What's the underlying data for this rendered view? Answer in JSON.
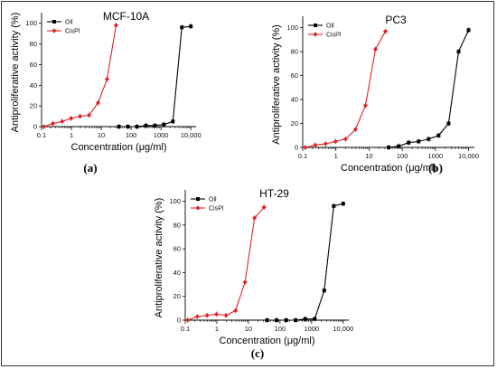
{
  "chart_data": [
    {
      "type": "line",
      "title": "MCF-10A",
      "panel_label": "(a)",
      "xlabel": "Concentration (μg/ml)",
      "ylabel": "Antiproliferative activity (%)",
      "x_scale": "log",
      "xlim": [
        0.1,
        15000
      ],
      "ylim": [
        0,
        105
      ],
      "x_ticks": [
        0.1,
        1,
        10,
        100,
        1000,
        10000
      ],
      "x_tick_labels": [
        "0.1",
        "1",
        "10",
        "100",
        "1000",
        "10,000"
      ],
      "y_ticks": [
        0,
        20,
        40,
        60,
        80,
        100
      ],
      "legend_position": "top-left",
      "series": [
        {
          "name": "Oil",
          "color": "#000000",
          "marker": "square",
          "x": [
            39,
            78,
            156,
            312,
            625,
            1250,
            2500,
            5000,
            10000
          ],
          "y": [
            0,
            0,
            0,
            1,
            1,
            2,
            5,
            96,
            97
          ]
        },
        {
          "name": "CisPl",
          "color": "#e0232a",
          "marker": "diamond",
          "x": [
            0.12,
            0.24,
            0.49,
            0.98,
            1.95,
            3.9,
            7.8,
            15.6,
            31.2
          ],
          "y": [
            0,
            3,
            5,
            8,
            10,
            11,
            23,
            46,
            98
          ]
        }
      ]
    },
    {
      "type": "line",
      "title": "PC3",
      "panel_label": "(b)",
      "xlabel": "Concentration (μg/ml)",
      "ylabel": "Antiproliferative activity (%)",
      "x_scale": "log",
      "xlim": [
        0.1,
        15000
      ],
      "ylim": [
        0,
        105
      ],
      "x_ticks": [
        0.1,
        1,
        10,
        100,
        1000,
        10000
      ],
      "x_tick_labels": [
        "0.1",
        "1",
        "10",
        "100",
        "1000",
        "10,000"
      ],
      "y_ticks": [
        0,
        20,
        40,
        60,
        80,
        100
      ],
      "legend_position": "top-left",
      "series": [
        {
          "name": "Oil",
          "color": "#000000",
          "marker": "square",
          "x": [
            39,
            78,
            156,
            312,
            625,
            1250,
            2500,
            5000,
            10000
          ],
          "y": [
            0,
            1,
            4,
            5,
            7,
            10,
            20,
            80,
            98
          ]
        },
        {
          "name": "CisPl",
          "color": "#e0232a",
          "marker": "diamond",
          "x": [
            0.12,
            0.24,
            0.49,
            0.98,
            1.95,
            3.9,
            7.8,
            15.6,
            31.2
          ],
          "y": [
            0,
            2,
            3,
            5,
            7,
            15,
            35,
            82,
            97
          ]
        }
      ]
    },
    {
      "type": "line",
      "title": "HT-29",
      "panel_label": "(c)",
      "xlabel": "Concentration (μg/ml)",
      "ylabel": "Antiproliferative activity (%)",
      "x_scale": "log",
      "xlim": [
        0.1,
        15000
      ],
      "ylim": [
        0,
        105
      ],
      "x_ticks": [
        0.1,
        1,
        10,
        100,
        1000,
        10000
      ],
      "x_tick_labels": [
        "0.1",
        "1",
        "10",
        "100",
        "1000",
        "10,000"
      ],
      "y_ticks": [
        0,
        20,
        40,
        60,
        80,
        100
      ],
      "legend_position": "top-left",
      "series": [
        {
          "name": "Oil",
          "color": "#000000",
          "marker": "square",
          "x": [
            39,
            78,
            156,
            312,
            625,
            1250,
            2500,
            5000,
            10000
          ],
          "y": [
            0,
            0,
            0,
            0,
            1,
            1,
            25,
            96,
            98
          ]
        },
        {
          "name": "CisPl",
          "color": "#e0232a",
          "marker": "diamond",
          "x": [
            0.12,
            0.24,
            0.49,
            0.98,
            1.95,
            3.9,
            7.8,
            15.6,
            31.2
          ],
          "y": [
            0,
            3,
            4,
            5,
            4,
            8,
            32,
            86,
            95
          ]
        }
      ]
    }
  ]
}
